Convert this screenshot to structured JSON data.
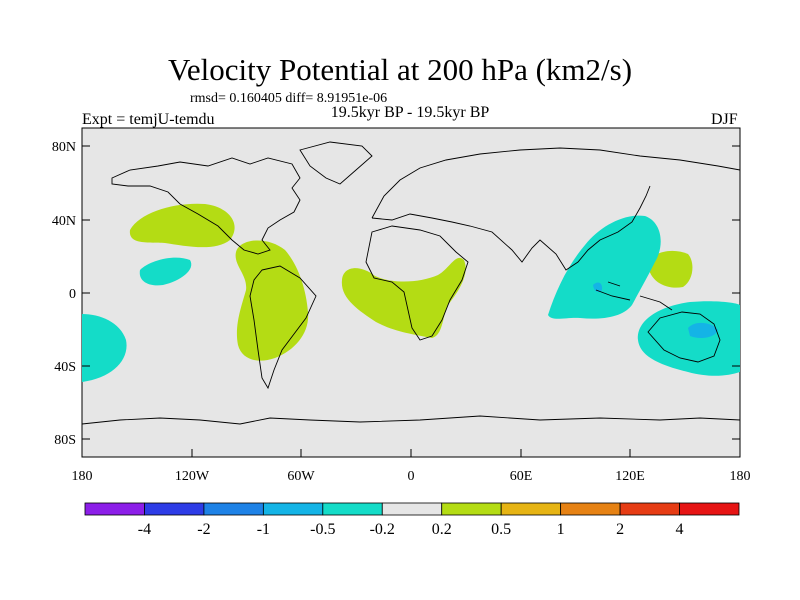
{
  "title": "Velocity Potential at 200 hPa (km2/s)",
  "stats": "rmsd= 0.160405 diff= 8.91951e-06",
  "period": "19.5kyr BP - 19.5kyr BP",
  "expt": "Expt = temjU-temdu",
  "season": "DJF",
  "lat_labels": [
    "80N",
    "40N",
    "0",
    "40S",
    "80S"
  ],
  "lon_labels": [
    "180",
    "120W",
    "60W",
    "0",
    "60E",
    "120E",
    "180"
  ],
  "colorbar": {
    "colors": [
      "#8c1ee8",
      "#2d3ce6",
      "#1e82e6",
      "#14b4e6",
      "#14dcc8",
      "#e6e6e6",
      "#b4dc14",
      "#e6b414",
      "#e68214",
      "#e63c14",
      "#e61414"
    ],
    "labels": [
      "-4",
      "-2",
      "-1",
      "-0.5",
      "-0.2",
      "0.2",
      "0.5",
      "1",
      "2",
      "4"
    ]
  },
  "colors": {
    "ocean_background": "#e6e6e6",
    "positive_region": "#b4dc14",
    "negative_region": "#14dcc8",
    "strong_negative": "#14b4e6"
  }
}
